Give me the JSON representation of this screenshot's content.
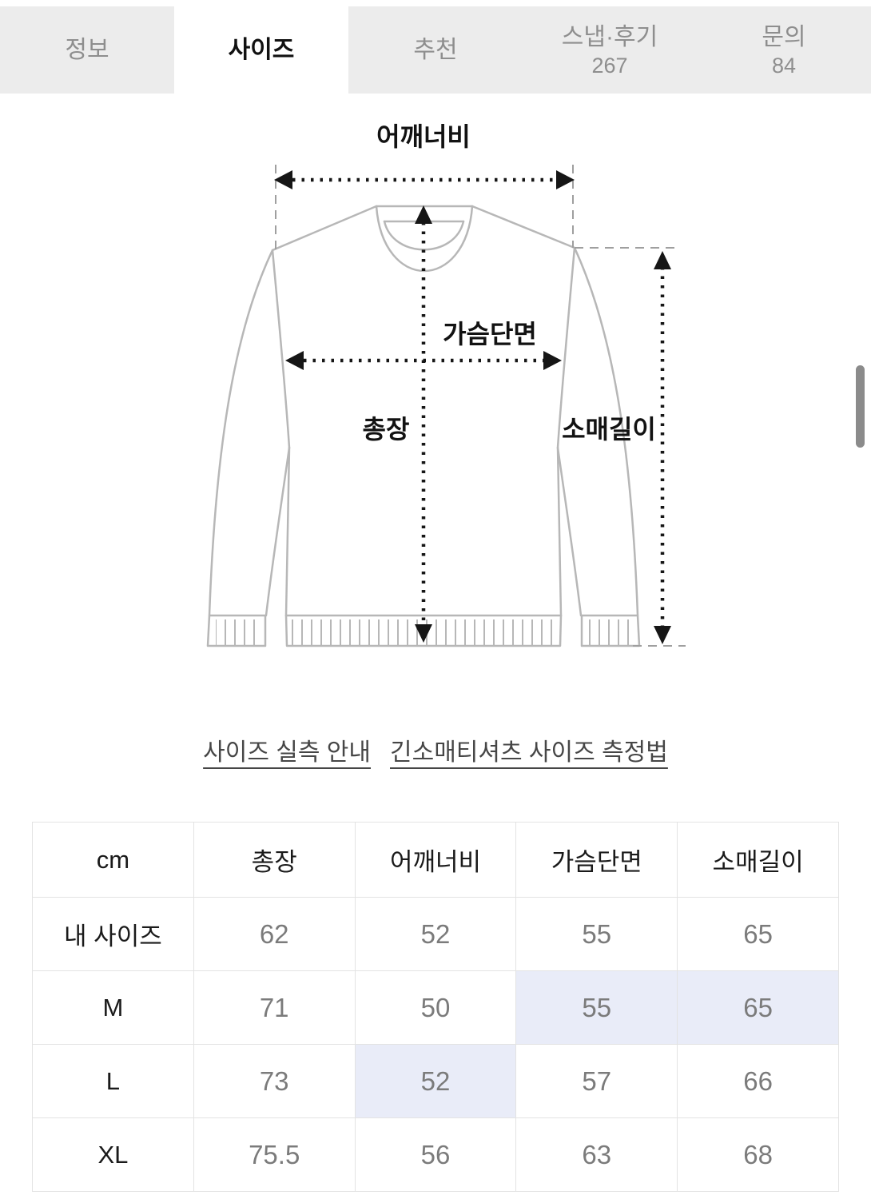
{
  "tabs": {
    "items": [
      {
        "id": "info",
        "label": "정보",
        "active": false
      },
      {
        "id": "size",
        "label": "사이즈",
        "active": true
      },
      {
        "id": "recommend",
        "label": "추천",
        "active": false
      },
      {
        "id": "snap-reviews",
        "label": "스냅·후기",
        "count": "267",
        "active": false
      },
      {
        "id": "inquiry",
        "label": "문의",
        "count": "84",
        "active": false
      }
    ]
  },
  "diagram": {
    "shoulder_label": "어깨너비",
    "chest_label": "가슴단면",
    "length_label": "총장",
    "sleeve_label": "소매길이"
  },
  "links": {
    "size_guide": "사이즈 실측 안내",
    "measure_method": "긴소매티셔츠 사이즈 측정법"
  },
  "size_table": {
    "columns": [
      "cm",
      "총장",
      "어깨너비",
      "가슴단면",
      "소매길이"
    ],
    "rows": [
      {
        "label": "내 사이즈",
        "values": [
          "62",
          "52",
          "55",
          "65"
        ],
        "highlighted": []
      },
      {
        "label": "M",
        "values": [
          "71",
          "50",
          "55",
          "65"
        ],
        "highlighted": [
          2,
          3
        ]
      },
      {
        "label": "L",
        "values": [
          "73",
          "52",
          "57",
          "66"
        ],
        "highlighted": [
          1
        ]
      },
      {
        "label": "XL",
        "values": [
          "75.5",
          "56",
          "63",
          "68"
        ],
        "highlighted": []
      }
    ]
  },
  "colors": {
    "tab_bg": "#ececec",
    "tab_inactive_text": "#8e8e8e",
    "active_text": "#111111",
    "number_text": "#7b7b7b",
    "grid_line": "#e3e3e3",
    "highlight_cell": "#e9ecf8",
    "link_text": "#464646",
    "garment_line": "#b7b7b7",
    "scrollbar": "#8b8b8b"
  }
}
